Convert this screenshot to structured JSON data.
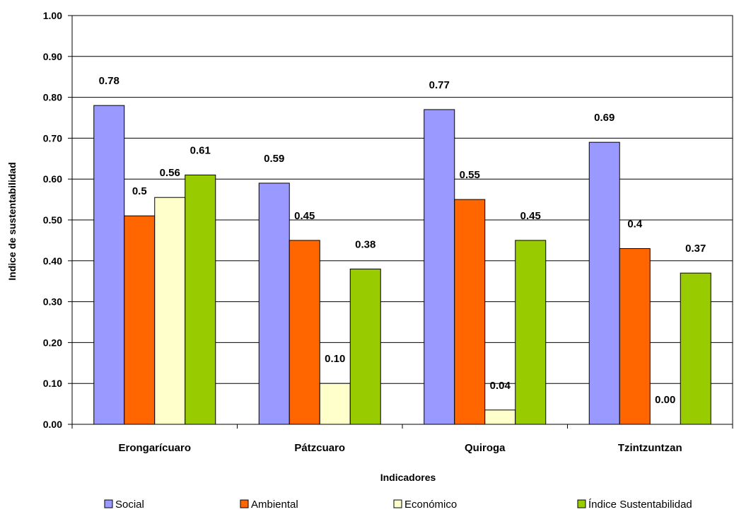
{
  "chart_data": {
    "type": "bar",
    "categories": [
      "Erongarícuaro",
      "Pátzcuaro",
      "Quiroga",
      "Tzintzuntzan"
    ],
    "series": [
      {
        "name": "Social",
        "color": "#9999ff",
        "values": [
          0.78,
          0.59,
          0.77,
          0.69
        ],
        "labels": [
          "0.78",
          "0.59",
          "0.77",
          "0.69"
        ]
      },
      {
        "name": "Ambiental",
        "color": "#ff6600",
        "values": [
          0.51,
          0.45,
          0.55,
          0.43
        ],
        "labels": [
          "0.5",
          "0.45",
          "0.55",
          "0.4"
        ]
      },
      {
        "name": "Económico",
        "color": "#ffffcc",
        "values": [
          0.555,
          0.1,
          0.035,
          0.0
        ],
        "labels": [
          "0.56",
          "0.10",
          "0.04",
          "0.00"
        ]
      },
      {
        "name": "Índice Sustentabilidad",
        "color": "#99cc00",
        "values": [
          0.61,
          0.38,
          0.45,
          0.37
        ],
        "labels": [
          "0.61",
          "0.38",
          "0.45",
          "0.37"
        ]
      }
    ],
    "title": "",
    "xlabel": "Indicadores",
    "ylabel": "Indice de sustentabilidad",
    "ylim": [
      0,
      1.0
    ],
    "yticks": [
      "0.00",
      "0.10",
      "0.20",
      "0.30",
      "0.40",
      "0.50",
      "0.60",
      "0.70",
      "0.80",
      "0.90",
      "1.00"
    ],
    "grid": "horizontal",
    "legend": "bottom"
  }
}
